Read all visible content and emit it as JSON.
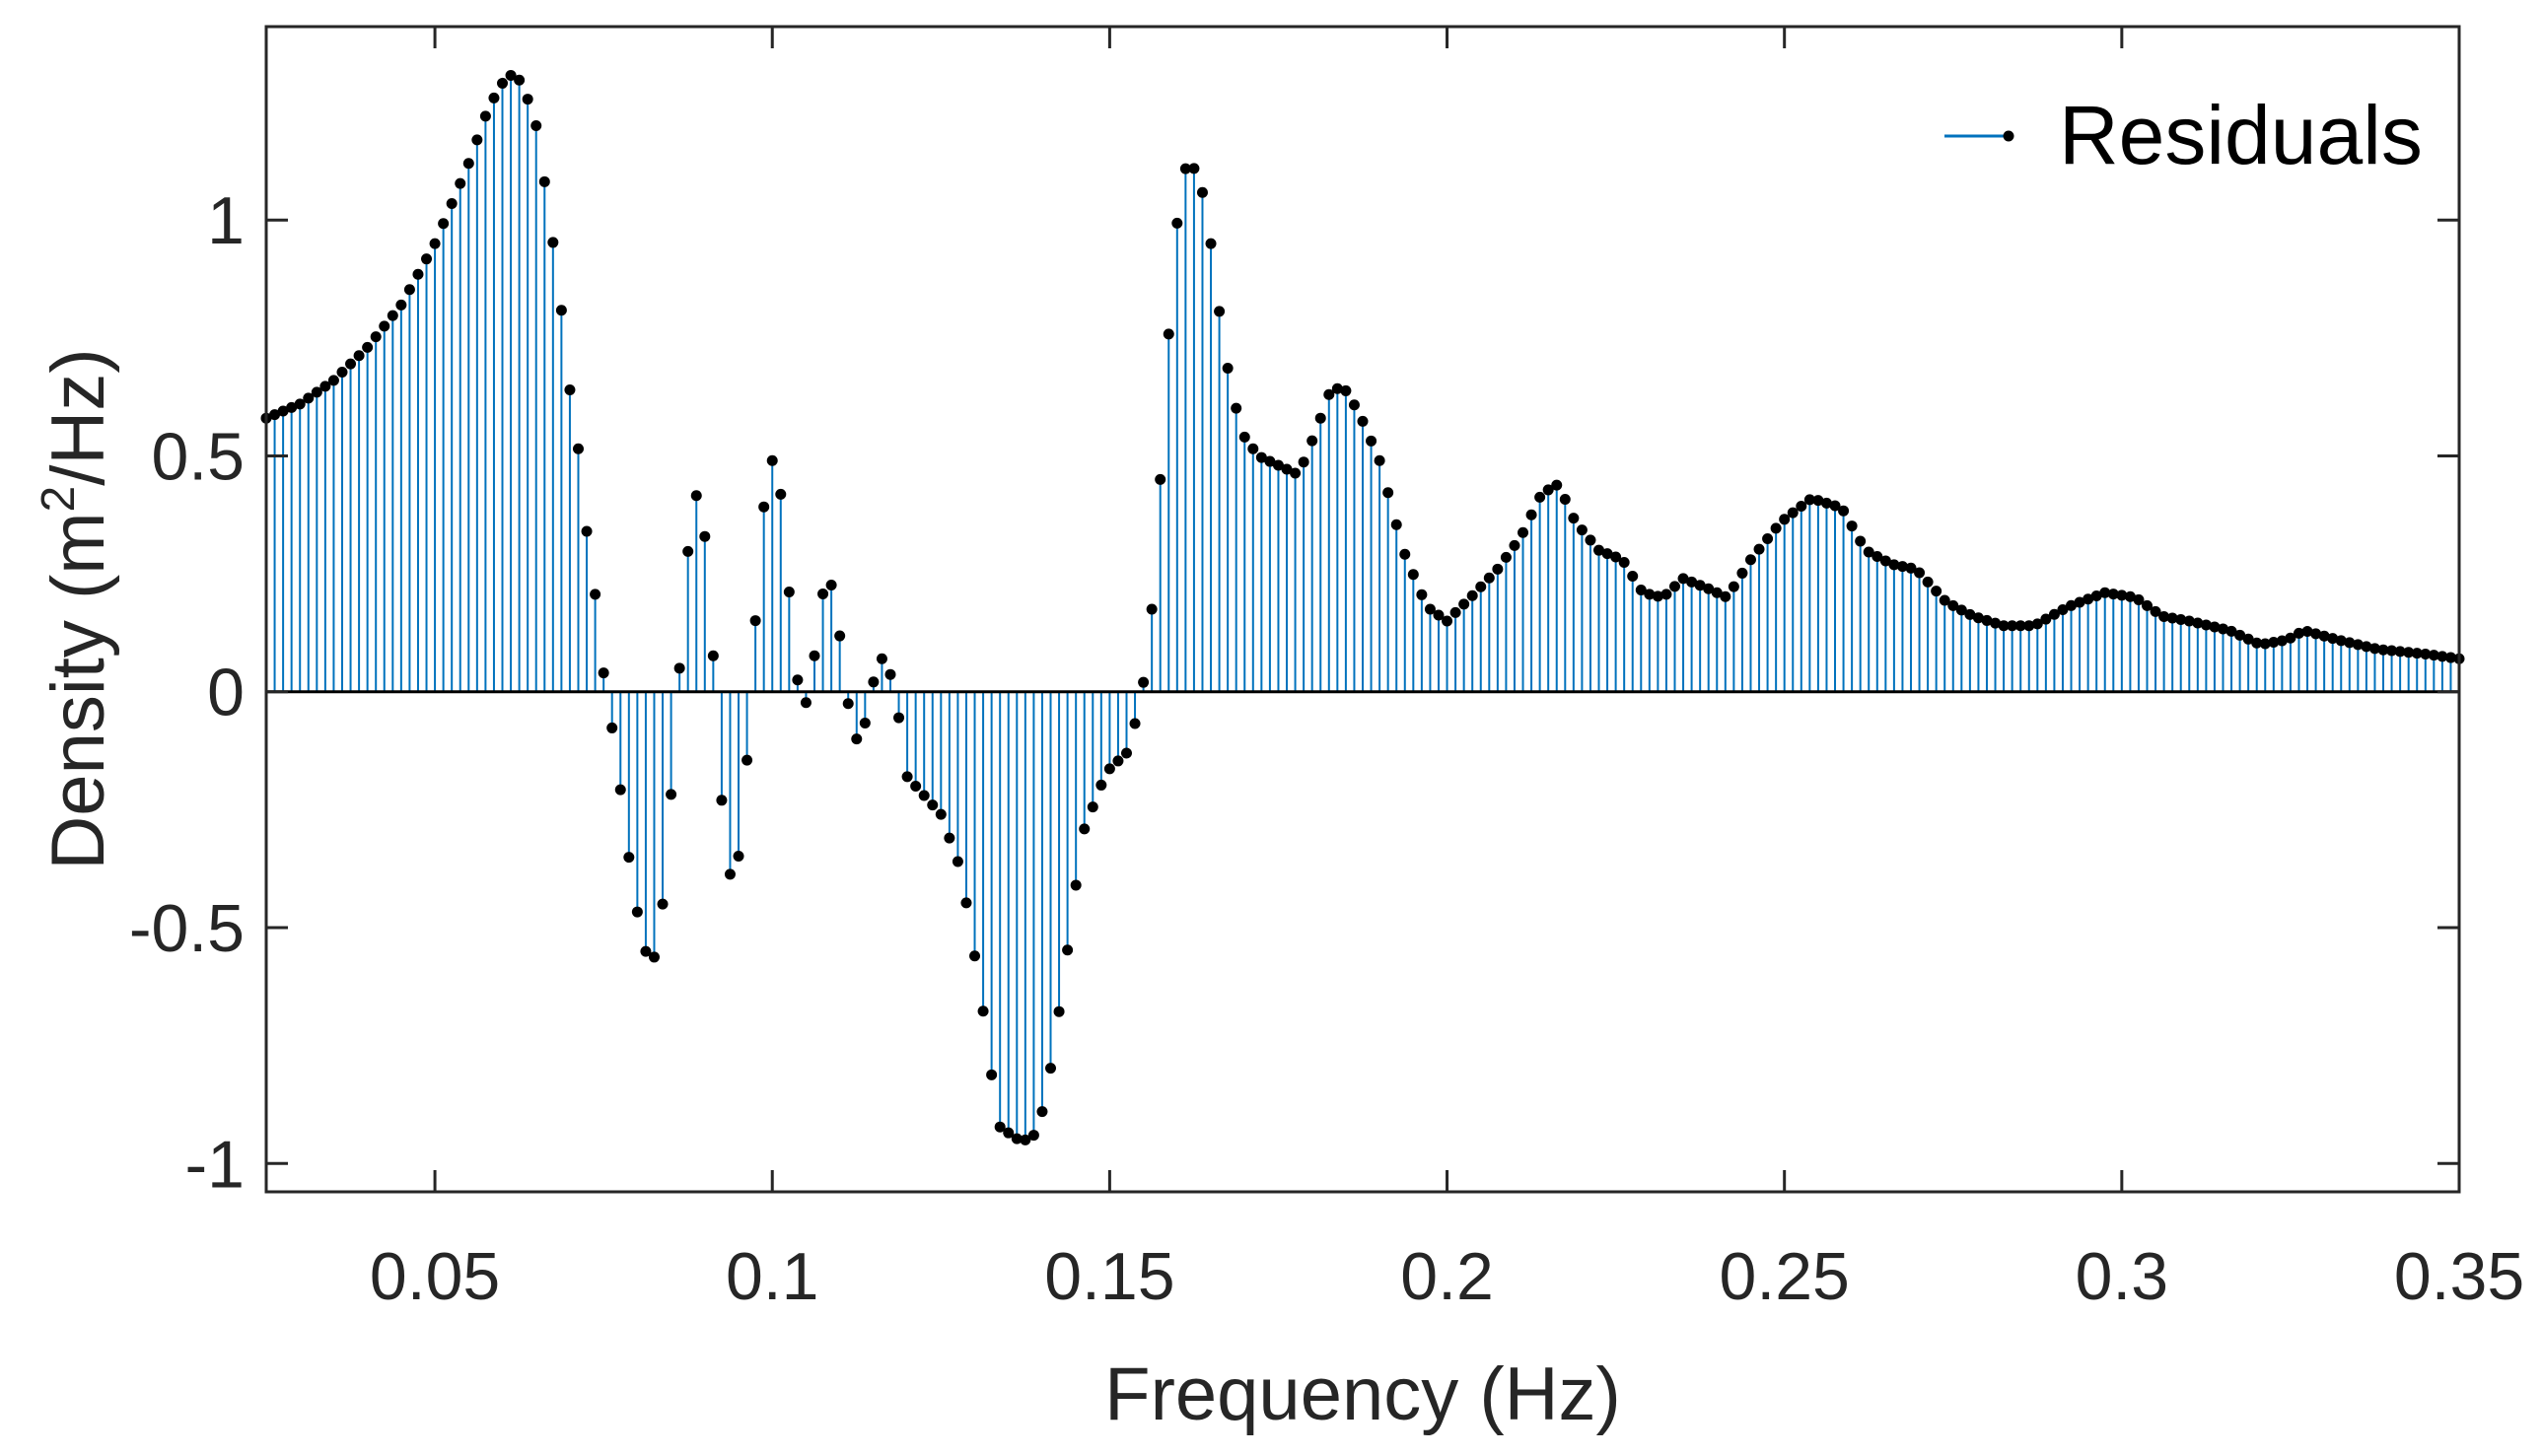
{
  "chart_data": {
    "type": "stem",
    "xlabel": "Frequency (Hz)",
    "ylabel_main": "Density (m",
    "ylabel_sup": "2",
    "ylabel_tail": "/Hz)",
    "xlim": [
      0.025,
      0.35
    ],
    "ylim": [
      -1.06,
      1.41
    ],
    "xticks": [
      0.05,
      0.1,
      0.15,
      0.2,
      0.25,
      0.3,
      0.35
    ],
    "xtick_labels": [
      "0.05",
      "0.1",
      "0.15",
      "0.2",
      "0.25",
      "0.3",
      "0.35"
    ],
    "yticks": [
      -1,
      -0.5,
      0,
      0.5,
      1
    ],
    "ytick_labels": [
      "-1",
      "-0.5",
      "0",
      "0.5",
      "1"
    ],
    "legend": {
      "label": "Residuals",
      "position": "top-right"
    },
    "colors": {
      "stem": "#0072BD",
      "marker": "#000000",
      "axis": "#262626"
    },
    "sample_step": 0.00125,
    "anchors": [
      [
        0.025,
        0.58
      ],
      [
        0.03,
        0.61
      ],
      [
        0.035,
        0.66
      ],
      [
        0.04,
        0.73
      ],
      [
        0.045,
        0.82
      ],
      [
        0.05,
        0.95
      ],
      [
        0.055,
        1.12
      ],
      [
        0.058,
        1.24
      ],
      [
        0.06,
        1.29
      ],
      [
        0.0615,
        1.31
      ],
      [
        0.063,
        1.29
      ],
      [
        0.065,
        1.2
      ],
      [
        0.067,
        1.01
      ],
      [
        0.069,
        0.78
      ],
      [
        0.07,
        0.64
      ],
      [
        0.0715,
        0.49
      ],
      [
        0.0725,
        0.34
      ],
      [
        0.074,
        0.18
      ],
      [
        0.075,
        0.04
      ],
      [
        0.0765,
        -0.1
      ],
      [
        0.0778,
        -0.24
      ],
      [
        0.079,
        -0.38
      ],
      [
        0.0805,
        -0.51
      ],
      [
        0.0818,
        -0.58
      ],
      [
        0.083,
        -0.55
      ],
      [
        0.0842,
        -0.39
      ],
      [
        0.0855,
        -0.11
      ],
      [
        0.087,
        0.21
      ],
      [
        0.0882,
        0.42
      ],
      [
        0.0895,
        0.41
      ],
      [
        0.0908,
        0.2
      ],
      [
        0.092,
        -0.13
      ],
      [
        0.0932,
        -0.37
      ],
      [
        0.0945,
        -0.41
      ],
      [
        0.0958,
        -0.25
      ],
      [
        0.097,
        0.03
      ],
      [
        0.0982,
        0.32
      ],
      [
        0.0995,
        0.49
      ],
      [
        0.1008,
        0.49
      ],
      [
        0.102,
        0.3
      ],
      [
        0.1033,
        0.07
      ],
      [
        0.1045,
        -0.05
      ],
      [
        0.1058,
        0.02
      ],
      [
        0.107,
        0.17
      ],
      [
        0.1082,
        0.26
      ],
      [
        0.1095,
        0.18
      ],
      [
        0.1108,
        0.02
      ],
      [
        0.112,
        -0.1
      ],
      [
        0.1133,
        -0.1
      ],
      [
        0.1145,
        -0.01
      ],
      [
        0.1158,
        0.07
      ],
      [
        0.117,
        0.07
      ],
      [
        0.1185,
        -0.03
      ],
      [
        0.12,
        -0.18
      ],
      [
        0.1225,
        -0.22
      ],
      [
        0.125,
        -0.26
      ],
      [
        0.128,
        -0.38
      ],
      [
        0.131,
        -0.65
      ],
      [
        0.1335,
        -0.92
      ],
      [
        0.1365,
        -0.95
      ],
      [
        0.1385,
        -0.95
      ],
      [
        0.1405,
        -0.87
      ],
      [
        0.143,
        -0.63
      ],
      [
        0.146,
        -0.3
      ],
      [
        0.1495,
        -0.17
      ],
      [
        0.1525,
        -0.13
      ],
      [
        0.1545,
        -0.03
      ],
      [
        0.156,
        0.12
      ],
      [
        0.1575,
        0.45
      ],
      [
        0.159,
        0.82
      ],
      [
        0.1605,
        1.08
      ],
      [
        0.1618,
        1.13
      ],
      [
        0.1635,
        1.08
      ],
      [
        0.165,
        0.95
      ],
      [
        0.167,
        0.72
      ],
      [
        0.1695,
        0.55
      ],
      [
        0.172,
        0.5
      ],
      [
        0.175,
        0.48
      ],
      [
        0.178,
        0.46
      ],
      [
        0.1805,
        0.55
      ],
      [
        0.1825,
        0.63
      ],
      [
        0.1845,
        0.65
      ],
      [
        0.187,
        0.59
      ],
      [
        0.19,
        0.49
      ],
      [
        0.1935,
        0.3
      ],
      [
        0.197,
        0.18
      ],
      [
        0.2,
        0.15
      ],
      [
        0.2035,
        0.2
      ],
      [
        0.2075,
        0.26
      ],
      [
        0.211,
        0.33
      ],
      [
        0.214,
        0.42
      ],
      [
        0.2165,
        0.44
      ],
      [
        0.219,
        0.36
      ],
      [
        0.2225,
        0.3
      ],
      [
        0.226,
        0.28
      ],
      [
        0.229,
        0.21
      ],
      [
        0.232,
        0.2
      ],
      [
        0.235,
        0.24
      ],
      [
        0.2385,
        0.22
      ],
      [
        0.2415,
        0.2
      ],
      [
        0.245,
        0.28
      ],
      [
        0.2495,
        0.36
      ],
      [
        0.254,
        0.41
      ],
      [
        0.2585,
        0.39
      ],
      [
        0.262,
        0.3
      ],
      [
        0.266,
        0.27
      ],
      [
        0.2695,
        0.26
      ],
      [
        0.274,
        0.19
      ],
      [
        0.278,
        0.16
      ],
      [
        0.2825,
        0.14
      ],
      [
        0.287,
        0.14
      ],
      [
        0.292,
        0.18
      ],
      [
        0.2975,
        0.21
      ],
      [
        0.302,
        0.2
      ],
      [
        0.306,
        0.16
      ],
      [
        0.31,
        0.15
      ],
      [
        0.316,
        0.13
      ],
      [
        0.3205,
        0.1
      ],
      [
        0.3245,
        0.11
      ],
      [
        0.327,
        0.13
      ],
      [
        0.332,
        0.11
      ],
      [
        0.338,
        0.09
      ],
      [
        0.345,
        0.08
      ],
      [
        0.35,
        0.07
      ]
    ]
  }
}
